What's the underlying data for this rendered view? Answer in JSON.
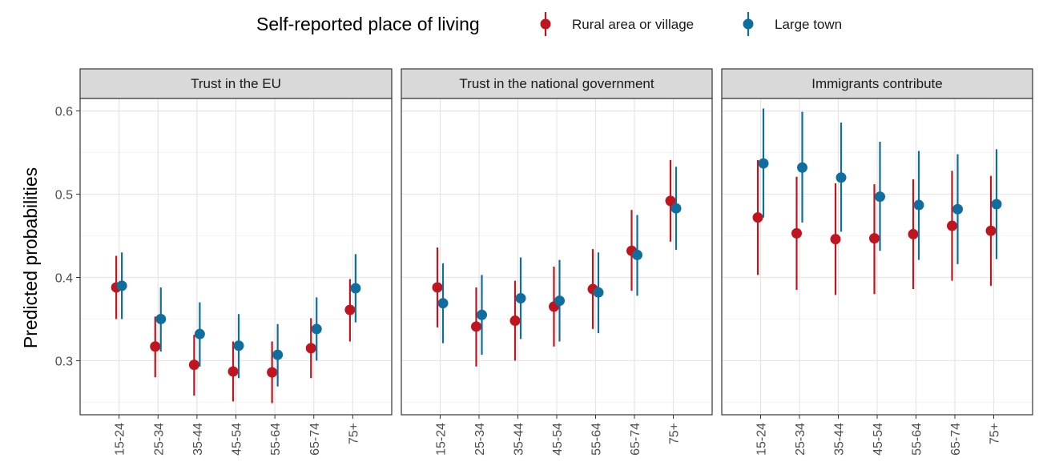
{
  "chart_data": {
    "type": "scatter",
    "ylabel": "Predicted probabilities",
    "ylim": [
      0.235,
      0.615
    ],
    "y_ticks": [
      0.3,
      0.4,
      0.5,
      0.6
    ],
    "y_tick_labels": [
      "0.3",
      "0.4",
      "0.5",
      "0.6"
    ],
    "categories": [
      "15-24",
      "25-34",
      "35-44",
      "45-54",
      "55-64",
      "65-74",
      "75+"
    ],
    "grid": true,
    "legend": {
      "title": "Self-reported place of living",
      "position": "top",
      "entries": [
        {
          "name": "Rural area or village",
          "color": "#c0141f"
        },
        {
          "name": "Large town",
          "color": "#0f6e9e"
        }
      ]
    },
    "panels": [
      {
        "title": "Trust in the EU",
        "series": [
          {
            "name": "Rural area or village",
            "color": "#c0141f",
            "values": [
              0.388,
              0.317,
              0.295,
              0.287,
              0.286,
              0.315,
              0.361
            ],
            "lower": [
              0.35,
              0.28,
              0.258,
              0.251,
              0.249,
              0.279,
              0.323
            ],
            "upper": [
              0.426,
              0.353,
              0.331,
              0.323,
              0.323,
              0.351,
              0.398
            ]
          },
          {
            "name": "Large town",
            "color": "#0f6e9e",
            "values": [
              0.39,
              0.35,
              0.332,
              0.318,
              0.307,
              0.338,
              0.387
            ],
            "lower": [
              0.35,
              0.311,
              0.293,
              0.279,
              0.269,
              0.3,
              0.346
            ],
            "upper": [
              0.43,
              0.388,
              0.37,
              0.356,
              0.344,
              0.376,
              0.428
            ]
          }
        ]
      },
      {
        "title": "Trust in the national government",
        "series": [
          {
            "name": "Rural area or village",
            "color": "#c0141f",
            "values": [
              0.388,
              0.341,
              0.348,
              0.365,
              0.386,
              0.432,
              0.492
            ],
            "lower": [
              0.34,
              0.293,
              0.3,
              0.317,
              0.338,
              0.384,
              0.443
            ],
            "upper": [
              0.436,
              0.388,
              0.396,
              0.413,
              0.434,
              0.481,
              0.541
            ]
          },
          {
            "name": "Large town",
            "color": "#0f6e9e",
            "values": [
              0.369,
              0.355,
              0.375,
              0.372,
              0.382,
              0.427,
              0.483
            ],
            "lower": [
              0.321,
              0.307,
              0.326,
              0.323,
              0.333,
              0.378,
              0.433
            ],
            "upper": [
              0.417,
              0.403,
              0.424,
              0.421,
              0.43,
              0.475,
              0.533
            ]
          }
        ]
      },
      {
        "title": "Immigrants contribute",
        "series": [
          {
            "name": "Rural area or village",
            "color": "#c0141f",
            "values": [
              0.472,
              0.453,
              0.446,
              0.447,
              0.452,
              0.462,
              0.456
            ],
            "lower": [
              0.403,
              0.385,
              0.379,
              0.38,
              0.386,
              0.396,
              0.39
            ],
            "upper": [
              0.541,
              0.521,
              0.513,
              0.512,
              0.518,
              0.528,
              0.522
            ]
          },
          {
            "name": "Large town",
            "color": "#0f6e9e",
            "values": [
              0.537,
              0.532,
              0.52,
              0.497,
              0.487,
              0.482,
              0.488
            ],
            "lower": [
              0.472,
              0.466,
              0.455,
              0.432,
              0.421,
              0.416,
              0.422
            ],
            "upper": [
              0.603,
              0.599,
              0.586,
              0.563,
              0.552,
              0.548,
              0.554
            ]
          }
        ]
      }
    ]
  }
}
